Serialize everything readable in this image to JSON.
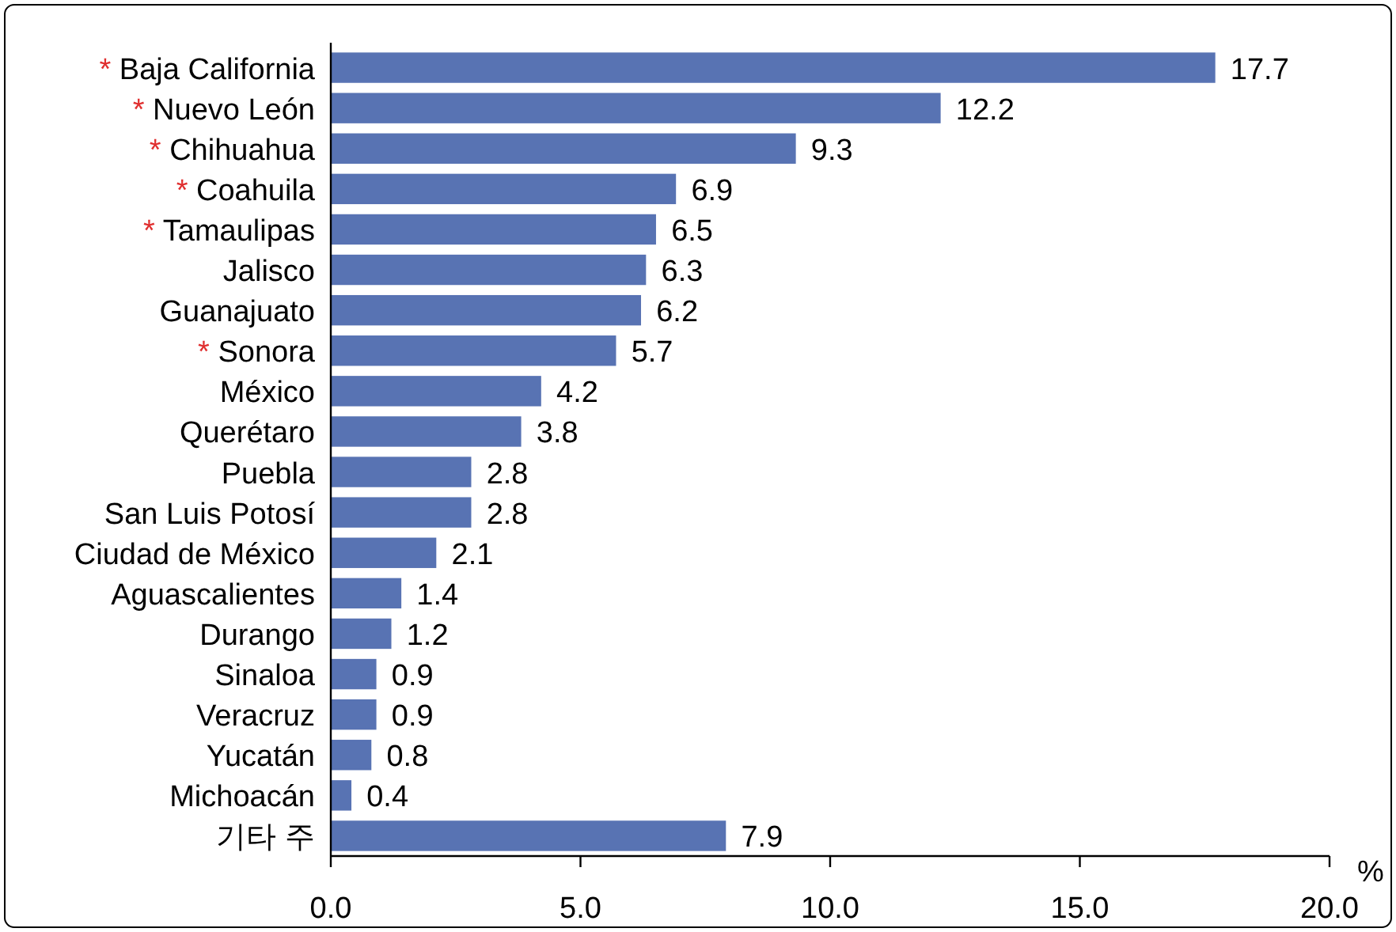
{
  "chart_data": {
    "type": "bar",
    "orientation": "horizontal",
    "xlabel": "%",
    "categories": [
      "* Baja California",
      "* Nuevo León",
      "* Chihuahua",
      "* Coahuila",
      "* Tamaulipas",
      "Jalisco",
      "Guanajuato",
      "* Sonora",
      "México",
      "Querétaro",
      "Puebla",
      "San Luis Potosí",
      "Ciudad de México",
      "Aguascalientes",
      "Durango",
      "Sinaloa",
      "Veracruz",
      "Yucatán",
      "Michoacán",
      "기타 주"
    ],
    "values": [
      17.7,
      12.2,
      9.3,
      6.9,
      6.5,
      6.3,
      6.2,
      5.7,
      4.2,
      3.8,
      2.8,
      2.8,
      2.1,
      1.4,
      1.2,
      0.9,
      0.9,
      0.8,
      0.4,
      7.9
    ],
    "color": "#5873b3",
    "data_labels": true,
    "grid": false,
    "xlim": [
      0,
      20
    ],
    "xticks": [
      {
        "value": 0,
        "label": "0.0"
      },
      {
        "value": 5,
        "label": "5.0"
      },
      {
        "value": 10,
        "label": "10.0"
      },
      {
        "value": 15,
        "label": "15.0"
      },
      {
        "value": 20,
        "label": "20.0"
      }
    ]
  }
}
